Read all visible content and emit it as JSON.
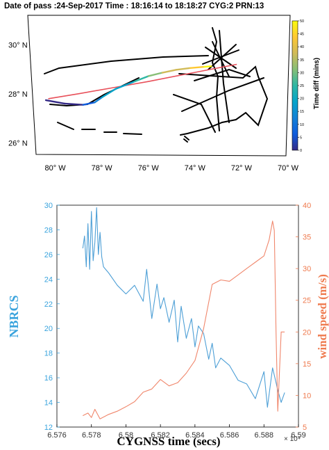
{
  "figure": {
    "map_title": "Date of pass :24-Sep-2017  Time : 18:16:14 to 18:18:27 CYG:2 PRN:13"
  },
  "chart_data": [
    {
      "type": "map",
      "title": "Date of pass :24-Sep-2017  Time : 18:16:14 to 18:18:27 CYG:2 PRN:13",
      "lon_range": [
        -81,
        -70
      ],
      "lat_range": [
        25.5,
        31.2
      ],
      "lat_ticks": [
        "26° N",
        "28° N",
        "30° N"
      ],
      "lat_tick_values": [
        26,
        28,
        30
      ],
      "lon_ticks": [
        "80° W",
        "78° W",
        "76° W",
        "74° W",
        "72° W",
        "70° W"
      ],
      "lon_tick_values": [
        -80,
        -78,
        -76,
        -74,
        -72,
        -70
      ],
      "colorbar": {
        "label": "Time diff (mins)",
        "range": [
          0,
          50
        ],
        "ticks": [
          "0",
          "5",
          "10",
          "15",
          "20",
          "25",
          "30",
          "35",
          "40",
          "45",
          "50"
        ],
        "colors": [
          "#352a87",
          "#0f5cdd",
          "#1481d6",
          "#06a4ca",
          "#2eb7a4",
          "#87bf77",
          "#d1bb59",
          "#fec832",
          "#f9fb0e"
        ]
      },
      "track_colored": {
        "lon": [
          -80.4,
          -79.6,
          -78.8,
          -78.3,
          -78.0,
          -77.4,
          -76.6,
          -76.0,
          -75.4,
          -74.8,
          -74.2,
          -73.6,
          -73.3
        ],
        "lat": [
          27.74,
          27.6,
          27.55,
          27.65,
          27.85,
          28.2,
          28.5,
          28.72,
          28.86,
          28.98,
          29.05,
          29.1,
          29.12
        ]
      },
      "track_red": {
        "lon": [
          -80.3,
          -79.0,
          -77.5,
          -76.0,
          -74.6,
          -73.2,
          -72.2
        ],
        "lat": [
          27.8,
          28.0,
          28.25,
          28.5,
          28.76,
          29.02,
          29.2
        ]
      },
      "coast_color": "#000000",
      "track_red_color": "#e8505a"
    },
    {
      "type": "line",
      "xlabel": "CYGNSS time (secs)",
      "x_multiplier": "× 10⁴",
      "xlim": [
        6.576,
        6.59
      ],
      "x_ticks": [
        "6.576",
        "6.578",
        "6.58",
        "6.582",
        "6.584",
        "6.586",
        "6.588",
        "6.59"
      ],
      "x_tick_values": [
        6.576,
        6.578,
        6.58,
        6.582,
        6.584,
        6.586,
        6.588,
        6.59
      ],
      "ylabel_left": "NBRCS",
      "ylim_left": [
        12,
        30
      ],
      "y_ticks_left": [
        "12",
        "14",
        "16",
        "18",
        "20",
        "22",
        "24",
        "26",
        "28",
        "30"
      ],
      "ylabel_right": "wind speed (m/s)",
      "ylim_right": [
        5,
        40
      ],
      "y_ticks_right": [
        "5",
        "10",
        "15",
        "20",
        "25",
        "30",
        "35",
        "40"
      ],
      "series": [
        {
          "name": "NBRCS",
          "axis": "left",
          "color": "#4d9fd6",
          "x": [
            6.5775,
            6.5776,
            6.5777,
            6.5778,
            6.5779,
            6.578,
            6.5781,
            6.5782,
            6.5783,
            6.5784,
            6.5785,
            6.5786,
            6.5787,
            6.579,
            6.5795,
            6.58,
            6.5805,
            6.581,
            6.5812,
            6.5815,
            6.5818,
            6.582,
            6.5822,
            6.5825,
            6.5828,
            6.583,
            6.5832,
            6.5835,
            6.5838,
            6.584,
            6.5842,
            6.5845,
            6.5848,
            6.585,
            6.5852,
            6.5855,
            6.586,
            6.5865,
            6.587,
            6.5875,
            6.588,
            6.5882,
            6.5885,
            6.5888,
            6.589,
            6.5892
          ],
          "y": [
            26.5,
            27.5,
            25.0,
            28.5,
            24.8,
            29.5,
            25.5,
            27.0,
            29.8,
            26.0,
            27.8,
            25.8,
            25.0,
            24.5,
            23.5,
            22.8,
            23.5,
            22.2,
            24.8,
            20.8,
            23.6,
            21.6,
            22.5,
            20.5,
            22.3,
            18.9,
            21.8,
            19.2,
            20.8,
            18.5,
            20.2,
            19.6,
            17.5,
            18.8,
            16.8,
            17.6,
            17.0,
            15.8,
            15.5,
            14.3,
            16.5,
            13.6,
            16.8,
            15.0,
            14.0,
            14.8
          ]
        },
        {
          "name": "wind speed",
          "axis": "right",
          "color": "#f0866b",
          "x": [
            6.5775,
            6.5778,
            6.578,
            6.5782,
            6.5785,
            6.579,
            6.5795,
            6.58,
            6.5805,
            6.581,
            6.5815,
            6.582,
            6.5825,
            6.583,
            6.5835,
            6.584,
            6.5845,
            6.585,
            6.5855,
            6.586,
            6.5865,
            6.587,
            6.5875,
            6.588,
            6.5883,
            6.5885,
            6.5886,
            6.5887,
            6.5888,
            6.589,
            6.5892
          ],
          "y": [
            6.8,
            7.2,
            6.5,
            7.8,
            6.3,
            7.0,
            7.5,
            8.2,
            9.0,
            10.5,
            11.0,
            12.5,
            11.5,
            12.0,
            13.5,
            15.5,
            20.5,
            27.5,
            28.2,
            28.0,
            29.0,
            30.0,
            31.0,
            32.0,
            34.5,
            37.5,
            36.0,
            20.0,
            7.5,
            20.0,
            20.0
          ]
        }
      ]
    }
  ]
}
